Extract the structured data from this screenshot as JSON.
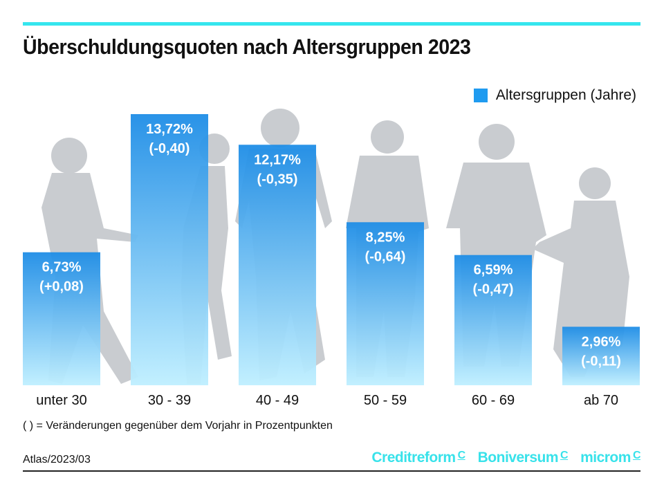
{
  "chart_data": {
    "type": "bar",
    "title": "Überschuldungsquoten nach Altersgruppen 2023",
    "categories": [
      "unter 30",
      "30 - 39",
      "40 - 49",
      "50 - 59",
      "60 - 69",
      "ab 70"
    ],
    "series": [
      {
        "name": "Altersgruppen (Jahre)",
        "values": [
          6.73,
          13.72,
          12.17,
          8.25,
          6.59,
          2.96
        ]
      }
    ],
    "value_labels": [
      "6,73%",
      "13,72%",
      "12,17%",
      "8,25%",
      "6,59%",
      "2,96%"
    ],
    "change_labels": [
      "(+0,08)",
      "(-0,40)",
      "(-0,35)",
      "(-0,64)",
      "(-0,47)",
      "(-0,11)"
    ],
    "ylim": [
      0,
      14
    ],
    "grid": false,
    "legend": "top-right",
    "colors": {
      "bar_top": "#1e8de6",
      "bar_bottom": "#bfefff",
      "silhouette": "#c9ccd0"
    }
  },
  "legend_label": "Altersgruppen (Jahre)",
  "note": "( ) =  Veränderungen gegenüber dem Vorjahr in Prozentpunkten",
  "source": "Atlas/2023/03",
  "logos": [
    "Creditreform",
    "Boniversum",
    "microm"
  ],
  "accent": "#35e6ee"
}
